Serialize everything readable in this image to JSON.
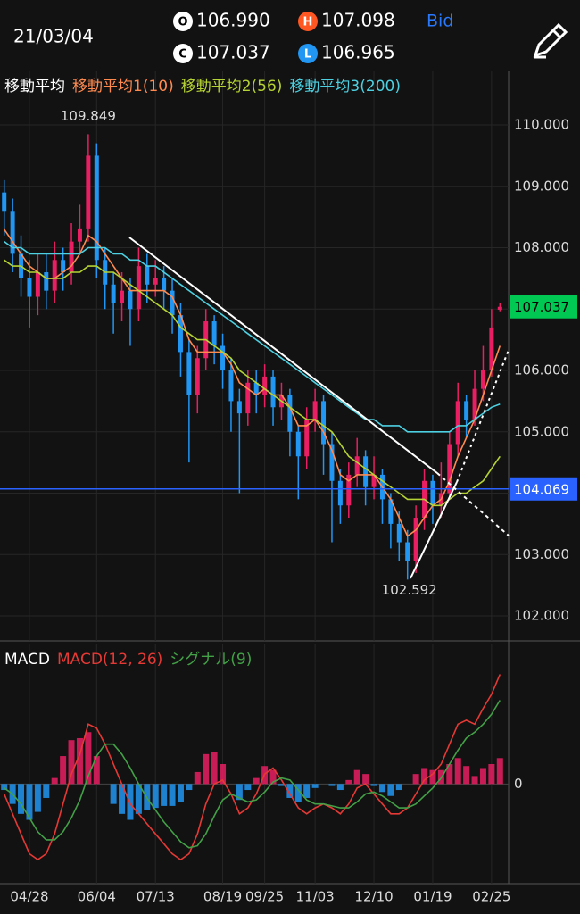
{
  "header": {
    "date": "21/03/04",
    "bid": "Bid",
    "quotes": [
      {
        "key": "O",
        "value": "106.990",
        "color": "#ffffff"
      },
      {
        "key": "H",
        "value": "107.098",
        "color": "#ff5722"
      },
      {
        "key": "C",
        "value": "107.037",
        "color": "#ffffff"
      },
      {
        "key": "L",
        "value": "106.965",
        "color": "#2196f3"
      }
    ]
  },
  "chart_data": [
    {
      "type": "candlestick",
      "title": "移動平均",
      "categories": [
        null,
        null,
        null,
        "04/28",
        null,
        null,
        null,
        null,
        null,
        null,
        null,
        "06/04",
        null,
        null,
        null,
        null,
        null,
        null,
        "07/13",
        null,
        null,
        null,
        null,
        null,
        null,
        null,
        "08/19",
        null,
        null,
        null,
        null,
        "09/25",
        null,
        null,
        null,
        null,
        null,
        "11/03",
        null,
        null,
        null,
        null,
        null,
        null,
        "12/10",
        null,
        null,
        null,
        null,
        null,
        null,
        "01/19",
        null,
        null,
        null,
        null,
        null,
        null,
        "02/25",
        null
      ],
      "open": [
        108.9,
        108.6,
        107.9,
        107.5,
        107.2,
        107.6,
        107.3,
        107.8,
        107.6,
        108.1,
        108.3,
        109.5,
        107.8,
        107.4,
        107.1,
        107.3,
        107.0,
        107.7,
        107.4,
        107.5,
        107.3,
        106.9,
        106.3,
        105.6,
        106.2,
        106.8,
        106.4,
        106.0,
        105.5,
        105.3,
        105.8,
        105.6,
        105.9,
        105.4,
        105.6,
        105.0,
        104.6,
        105.2,
        105.5,
        104.8,
        104.2,
        103.8,
        104.3,
        104.6,
        104.1,
        104.3,
        103.9,
        103.5,
        103.2,
        102.9,
        103.6,
        104.2,
        103.8,
        104.0,
        104.8,
        105.5,
        105.2,
        105.7,
        106.0,
        106.99
      ],
      "high": [
        109.1,
        108.8,
        108.2,
        107.8,
        107.9,
        107.9,
        108.1,
        108.0,
        108.4,
        108.7,
        109.849,
        109.7,
        108.0,
        107.6,
        107.6,
        107.5,
        108.0,
        107.9,
        107.8,
        107.7,
        107.5,
        107.1,
        106.5,
        106.4,
        107.0,
        106.9,
        106.6,
        106.2,
        105.7,
        106.0,
        106.0,
        106.1,
        106.0,
        105.8,
        105.7,
        105.1,
        105.4,
        105.7,
        105.6,
        105.0,
        104.4,
        104.5,
        104.9,
        104.7,
        104.6,
        104.4,
        104.0,
        103.7,
        103.4,
        103.8,
        104.4,
        104.3,
        104.5,
        105.0,
        105.8,
        105.6,
        106.0,
        106.4,
        107.0,
        107.098
      ],
      "low": [
        108.2,
        107.6,
        107.2,
        106.7,
        106.9,
        107.0,
        107.1,
        107.3,
        107.4,
        107.9,
        108.1,
        107.5,
        107.0,
        106.6,
        106.8,
        106.4,
        106.8,
        107.1,
        107.2,
        107.0,
        106.6,
        105.9,
        104.5,
        105.3,
        106.0,
        106.1,
        105.7,
        105.0,
        104.0,
        105.1,
        105.3,
        105.4,
        105.1,
        105.2,
        104.6,
        103.9,
        104.4,
        105.0,
        104.3,
        103.2,
        103.5,
        103.6,
        104.1,
        103.8,
        103.9,
        103.5,
        103.1,
        102.9,
        102.592,
        102.7,
        103.4,
        103.5,
        103.6,
        103.9,
        104.6,
        104.9,
        105.1,
        105.5,
        105.9,
        106.965
      ],
      "close": [
        108.6,
        107.9,
        107.5,
        107.2,
        107.6,
        107.3,
        107.8,
        107.6,
        108.1,
        108.3,
        109.5,
        107.8,
        107.4,
        107.1,
        107.3,
        107.0,
        107.7,
        107.4,
        107.5,
        107.3,
        106.9,
        106.3,
        105.6,
        106.2,
        106.8,
        106.4,
        106.0,
        105.5,
        105.3,
        105.8,
        105.6,
        105.9,
        105.4,
        105.6,
        105.0,
        104.6,
        105.2,
        105.5,
        104.8,
        104.2,
        103.8,
        104.3,
        104.6,
        104.1,
        104.3,
        103.9,
        103.5,
        103.2,
        102.9,
        103.6,
        104.2,
        103.8,
        104.0,
        104.8,
        105.5,
        105.2,
        105.7,
        106.0,
        106.7,
        107.037
      ],
      "up_color": "#e91e63",
      "down_color": "#2196f3",
      "series": [
        {
          "name": "移動平均1(10)",
          "color": "#ff8a50",
          "values": [
            108.3,
            108.1,
            107.9,
            107.7,
            107.6,
            107.5,
            107.5,
            107.6,
            107.7,
            107.9,
            108.2,
            108.1,
            107.9,
            107.7,
            107.5,
            107.3,
            107.3,
            107.3,
            107.3,
            107.3,
            107.2,
            106.9,
            106.5,
            106.3,
            106.3,
            106.3,
            106.3,
            106.1,
            105.8,
            105.7,
            105.6,
            105.7,
            105.6,
            105.6,
            105.4,
            105.1,
            105.1,
            105.2,
            105.0,
            104.7,
            104.3,
            104.2,
            104.3,
            104.3,
            104.3,
            104.1,
            103.9,
            103.6,
            103.3,
            103.4,
            103.6,
            103.8,
            103.9,
            104.2,
            104.6,
            104.9,
            105.2,
            105.6,
            106.0,
            106.4
          ]
        },
        {
          "name": "移動平均2(56)",
          "color": "#b5d334",
          "values": [
            107.8,
            107.7,
            107.7,
            107.6,
            107.6,
            107.5,
            107.5,
            107.5,
            107.6,
            107.6,
            107.7,
            107.7,
            107.6,
            107.6,
            107.5,
            107.4,
            107.3,
            107.2,
            107.1,
            107.0,
            106.9,
            106.7,
            106.6,
            106.5,
            106.5,
            106.4,
            106.3,
            106.2,
            106.0,
            105.9,
            105.8,
            105.7,
            105.6,
            105.5,
            105.4,
            105.3,
            105.2,
            105.2,
            105.1,
            105.0,
            104.8,
            104.6,
            104.5,
            104.4,
            104.3,
            104.2,
            104.1,
            104.0,
            103.9,
            103.9,
            103.9,
            103.8,
            103.8,
            103.9,
            104.0,
            104.0,
            104.1,
            104.2,
            104.4,
            104.6
          ]
        },
        {
          "name": "移動平均3(200)",
          "color": "#4dd0e1",
          "values": [
            108.1,
            108.0,
            108.0,
            107.9,
            107.9,
            107.9,
            107.9,
            107.9,
            107.9,
            107.9,
            108.0,
            108.0,
            108.0,
            107.9,
            107.9,
            107.8,
            107.8,
            107.7,
            107.7,
            107.6,
            107.5,
            107.4,
            107.3,
            107.2,
            107.1,
            107.0,
            106.9,
            106.8,
            106.7,
            106.6,
            106.5,
            106.4,
            106.3,
            106.2,
            106.1,
            106.0,
            105.9,
            105.8,
            105.7,
            105.6,
            105.5,
            105.4,
            105.3,
            105.2,
            105.2,
            105.1,
            105.1,
            105.1,
            105.0,
            105.0,
            105.0,
            105.0,
            105.0,
            105.0,
            105.1,
            105.1,
            105.2,
            105.3,
            105.4,
            105.45
          ]
        }
      ],
      "high_label": "109.849",
      "low_label": "102.592",
      "current_price": {
        "value": 107.037,
        "label": "107.037",
        "color": "#00c853"
      },
      "hline": {
        "value": 104.069,
        "label": "104.069",
        "color": "#2962ff"
      },
      "ylim": [
        101.593,
        110.873
      ],
      "yticks": [
        {
          "value": 102,
          "label": "102.000"
        },
        {
          "value": 103,
          "label": "103.000"
        },
        {
          "value": 104,
          "label": "104.000"
        },
        {
          "value": 105,
          "label": "105.000"
        },
        {
          "value": 106,
          "label": "106.000"
        },
        {
          "value": 107,
          "label": "107.000"
        },
        {
          "value": 108,
          "label": "108.000"
        },
        {
          "value": 109,
          "label": "109.000"
        },
        {
          "value": 110,
          "label": "110.000"
        }
      ],
      "grid": true
    },
    {
      "type": "macd",
      "title": "MACD",
      "series": [
        {
          "name": "MACD(12, 26)",
          "color": "#e53935",
          "values": [
            -0.05,
            -0.15,
            -0.25,
            -0.35,
            -0.38,
            -0.35,
            -0.25,
            -0.1,
            0.05,
            0.15,
            0.3,
            0.28,
            0.2,
            0.1,
            0.0,
            -0.1,
            -0.15,
            -0.2,
            -0.25,
            -0.3,
            -0.35,
            -0.38,
            -0.35,
            -0.25,
            -0.1,
            0.0,
            0.02,
            -0.05,
            -0.15,
            -0.12,
            -0.05,
            0.05,
            0.08,
            0.02,
            -0.05,
            -0.12,
            -0.15,
            -0.12,
            -0.1,
            -0.12,
            -0.15,
            -0.1,
            -0.02,
            0.0,
            -0.05,
            -0.1,
            -0.15,
            -0.15,
            -0.12,
            -0.05,
            0.02,
            0.05,
            0.1,
            0.2,
            0.3,
            0.32,
            0.3,
            0.38,
            0.45,
            0.55
          ]
        },
        {
          "name": "シグナル(9)",
          "color": "#43a047",
          "values": [
            -0.02,
            -0.05,
            -0.1,
            -0.17,
            -0.24,
            -0.28,
            -0.28,
            -0.24,
            -0.17,
            -0.08,
            0.04,
            0.14,
            0.2,
            0.2,
            0.15,
            0.08,
            0.0,
            -0.07,
            -0.13,
            -0.19,
            -0.24,
            -0.29,
            -0.32,
            -0.31,
            -0.25,
            -0.16,
            -0.08,
            -0.05,
            -0.07,
            -0.09,
            -0.08,
            -0.04,
            0.01,
            0.03,
            0.02,
            -0.03,
            -0.08,
            -0.1,
            -0.1,
            -0.11,
            -0.12,
            -0.12,
            -0.09,
            -0.05,
            -0.04,
            -0.06,
            -0.09,
            -0.12,
            -0.12,
            -0.1,
            -0.06,
            -0.02,
            0.03,
            0.1,
            0.17,
            0.23,
            0.26,
            0.3,
            0.35,
            0.42
          ]
        }
      ],
      "histogram": [
        -0.03,
        -0.1,
        -0.15,
        -0.18,
        -0.14,
        -0.07,
        0.03,
        0.14,
        0.22,
        0.23,
        0.26,
        0.14,
        0.0,
        -0.1,
        -0.15,
        -0.18,
        -0.15,
        -0.13,
        -0.12,
        -0.11,
        -0.11,
        -0.09,
        -0.03,
        0.06,
        0.15,
        0.16,
        0.1,
        0.0,
        -0.08,
        -0.03,
        0.03,
        0.09,
        0.07,
        -0.01,
        -0.07,
        -0.09,
        -0.07,
        -0.02,
        0.0,
        -0.01,
        -0.03,
        0.02,
        0.07,
        0.05,
        -0.01,
        -0.04,
        -0.06,
        -0.03,
        0.0,
        0.05,
        0.08,
        0.07,
        0.07,
        0.1,
        0.13,
        0.09,
        0.04,
        0.08,
        0.1,
        0.13
      ],
      "up_color": "#e91e63",
      "down_color": "#2196f3",
      "ylim": [
        -0.5,
        0.7
      ],
      "yticks": [
        0
      ]
    }
  ]
}
